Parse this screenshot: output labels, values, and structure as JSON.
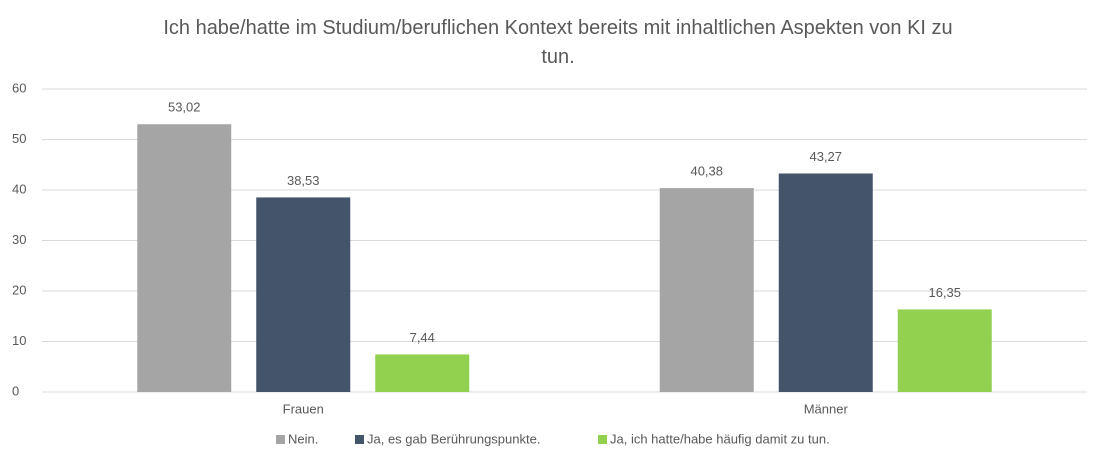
{
  "chart_data": {
    "type": "bar",
    "title": "Ich habe/hatte im Studium/beruflichen Kontext bereits mit inhaltlichen Aspekten von KI zu tun.",
    "categories": [
      "Frauen",
      "Männer"
    ],
    "series": [
      {
        "name": "Nein.",
        "color": "#a5a5a5",
        "values": [
          53.02,
          40.38
        ],
        "value_labels": [
          "53,02",
          "40,38"
        ]
      },
      {
        "name": "Ja, es gab Berührungspunkte.",
        "color": "#44546a",
        "values": [
          38.53,
          43.27
        ],
        "value_labels": [
          "38,53",
          "43,27"
        ]
      },
      {
        "name": "Ja, ich hatte/habe häufig damit zu tun.",
        "color": "#92d050",
        "values": [
          7.44,
          16.35
        ],
        "value_labels": [
          "7,44",
          "16,35"
        ]
      }
    ],
    "ylim": [
      0,
      60
    ],
    "yticks": [
      0,
      10,
      20,
      30,
      40,
      50,
      60
    ],
    "grid": true,
    "legend": "bottom"
  }
}
